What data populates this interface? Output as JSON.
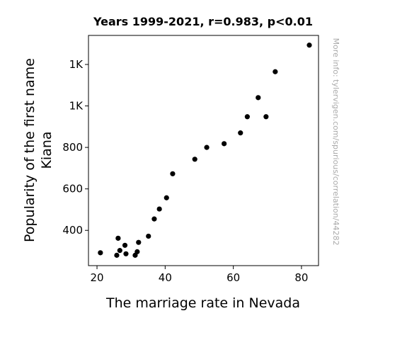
{
  "chart_data": {
    "type": "scatter",
    "title": "Years 1999-2021, r=0.983, p<0.01",
    "xlabel": "The marriage rate in Nevada",
    "ylabel_lines": [
      "Popularity of the first name",
      "Kiana"
    ],
    "watermark": "More info: tylervigen.com/spurious/correlation/44282",
    "xlim": [
      17.5,
      85
    ],
    "ylim": [
      230,
      1340
    ],
    "x_ticks": [
      {
        "value": 20,
        "label": "20"
      },
      {
        "value": 40,
        "label": "40"
      },
      {
        "value": 60,
        "label": "60"
      },
      {
        "value": 80,
        "label": "80"
      }
    ],
    "y_ticks": [
      {
        "value": 400,
        "label": "400"
      },
      {
        "value": 600,
        "label": "600"
      },
      {
        "value": 800,
        "label": "800"
      },
      {
        "value": 1000,
        "label": "1K"
      },
      {
        "value": 1200,
        "label": "1K"
      }
    ],
    "marker_color": "#000000",
    "points": [
      {
        "x": 21.0,
        "y": 292
      },
      {
        "x": 25.8,
        "y": 280
      },
      {
        "x": 26.2,
        "y": 362
      },
      {
        "x": 26.7,
        "y": 303
      },
      {
        "x": 28.2,
        "y": 328
      },
      {
        "x": 28.5,
        "y": 287
      },
      {
        "x": 31.2,
        "y": 280
      },
      {
        "x": 31.8,
        "y": 297
      },
      {
        "x": 32.2,
        "y": 342
      },
      {
        "x": 35.1,
        "y": 372
      },
      {
        "x": 36.8,
        "y": 455
      },
      {
        "x": 38.3,
        "y": 503
      },
      {
        "x": 40.4,
        "y": 557
      },
      {
        "x": 42.2,
        "y": 673
      },
      {
        "x": 48.7,
        "y": 743
      },
      {
        "x": 52.2,
        "y": 800
      },
      {
        "x": 57.3,
        "y": 818
      },
      {
        "x": 62.1,
        "y": 870
      },
      {
        "x": 64.1,
        "y": 948
      },
      {
        "x": 67.3,
        "y": 1040
      },
      {
        "x": 69.6,
        "y": 948
      },
      {
        "x": 72.3,
        "y": 1165
      },
      {
        "x": 82.3,
        "y": 1293
      }
    ]
  }
}
